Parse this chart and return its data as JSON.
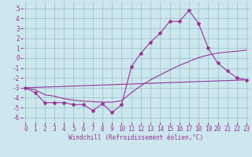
{
  "background_color": "#cce8ee",
  "grid_color": "#99bbcc",
  "line_color": "#993399",
  "xlim_min": -0.3,
  "xlim_max": 23.3,
  "ylim_min": -6.5,
  "ylim_max": 5.7,
  "xticks": [
    0,
    1,
    2,
    3,
    4,
    5,
    6,
    7,
    8,
    9,
    10,
    11,
    12,
    13,
    14,
    15,
    16,
    17,
    18,
    19,
    20,
    21,
    22,
    23
  ],
  "yticks": [
    -6,
    -5,
    -4,
    -3,
    -2,
    -1,
    0,
    1,
    2,
    3,
    4,
    5
  ],
  "line1_x": [
    0,
    1,
    2,
    3,
    4,
    5,
    6,
    7,
    8,
    9,
    10,
    11,
    12,
    13,
    14,
    15,
    16,
    17,
    18,
    19,
    20,
    21,
    22,
    23
  ],
  "line1_y": [
    -3.0,
    -3.5,
    -4.5,
    -4.5,
    -4.5,
    -4.7,
    -4.7,
    -5.3,
    -4.6,
    -5.5,
    -4.7,
    -0.9,
    0.5,
    1.6,
    2.5,
    3.7,
    3.7,
    4.8,
    3.5,
    1.0,
    -0.5,
    -1.3,
    -2.0,
    -2.2
  ],
  "line2_x": [
    0,
    1,
    2,
    3,
    4,
    5,
    6,
    7,
    8,
    9,
    10,
    11,
    12,
    13,
    14,
    15,
    16,
    17,
    18,
    19,
    20,
    21,
    22,
    23
  ],
  "line2_y": [
    -3.0,
    -3.2,
    -3.7,
    -3.85,
    -4.1,
    -4.25,
    -4.35,
    -4.4,
    -4.45,
    -4.45,
    -4.3,
    -3.5,
    -2.8,
    -2.2,
    -1.7,
    -1.2,
    -0.75,
    -0.35,
    0.05,
    0.3,
    0.5,
    0.6,
    0.7,
    0.8
  ],
  "line3_x": [
    0,
    23
  ],
  "line3_y": [
    -3.0,
    -2.2
  ],
  "xlabel": "Windchill (Refroidissement éolien,°C)",
  "xlabel_fontsize": 5.5,
  "tick_fontsize": 5.5,
  "marker": "*",
  "marker_size": 3.0,
  "linewidth": 0.8
}
